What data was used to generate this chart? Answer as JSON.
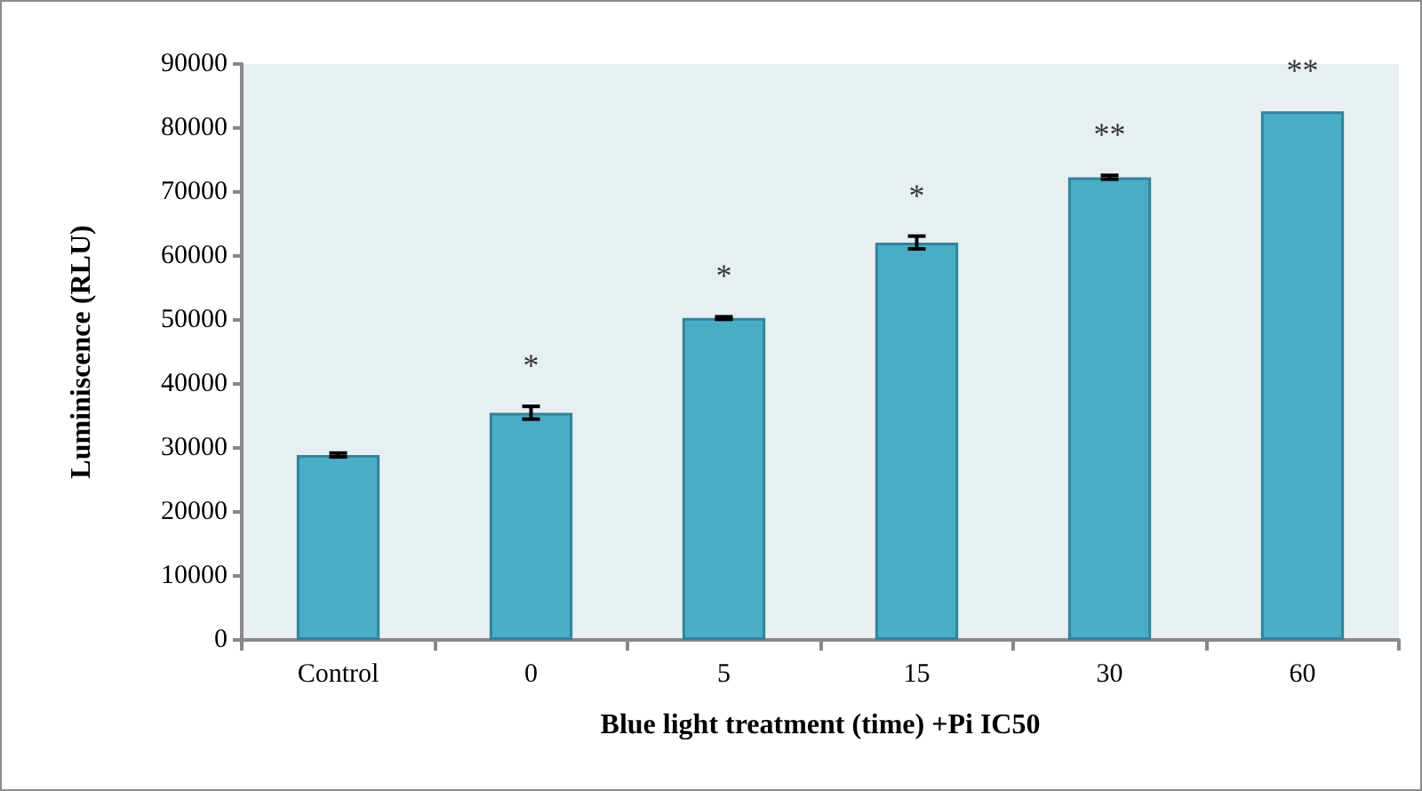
{
  "chart_data": {
    "type": "bar",
    "xlabel": "Blue light treatment (time) +Pi IC50",
    "ylabel": "Luminiscence (RLU)",
    "categories": [
      "Control",
      "0",
      "5",
      "15",
      "30",
      "60"
    ],
    "values": [
      28900,
      35500,
      50300,
      62100,
      72300,
      82600
    ],
    "errors": [
      300,
      1000,
      200,
      1000,
      300,
      null
    ],
    "color": "#4bacc6",
    "ylim": [
      0,
      90000
    ],
    "yticks": [
      0,
      10000,
      20000,
      30000,
      40000,
      50000,
      60000,
      70000,
      80000,
      90000
    ],
    "grid": false,
    "annotations": [
      "*",
      "*",
      "*",
      "**",
      "**"
    ]
  }
}
